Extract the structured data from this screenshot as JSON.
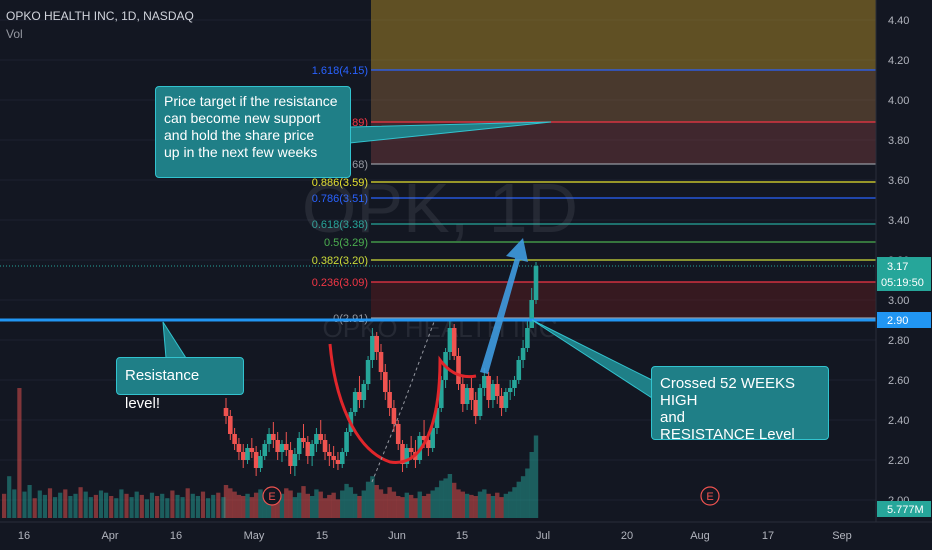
{
  "header": {
    "title": "OPKO HEALTH INC, 1D, NASDAQ",
    "volume_label": "Vol"
  },
  "watermark": {
    "symbol": "OPK, 1D",
    "name": "OPKO HEALTH INC"
  },
  "colors": {
    "background": "#131722",
    "up": "#26a69a",
    "down": "#ef5350",
    "resistance_line": "#2196f3",
    "annotation_fill": "#1f7f87",
    "annotation_border": "#32c3cf",
    "arrow": "#3f9be0",
    "curve": "#e0262b"
  },
  "annotations": {
    "price_target": [
      "Price target if the resistance",
      "can become new support",
      "and hold the share price",
      "up in the next few weeks"
    ],
    "resistance": [
      "Resistance level!"
    ],
    "crossed": [
      "Crossed 52 WEEKS HIGH",
      "and",
      "RESISTANCE Level"
    ]
  },
  "price_labels": {
    "last_price": "3.17",
    "countdown": "05:19:50",
    "resistance_price": "2.90",
    "volume": "5.777M"
  },
  "event_markers": [
    "E",
    "E"
  ],
  "chart_data": {
    "type": "candlestick",
    "y_axis": {
      "range": [
        1.98,
        4.5
      ],
      "ticks": [
        "4.40",
        "4.20",
        "4.00",
        "3.80",
        "3.60",
        "3.40",
        "3.20",
        "3.00",
        "2.80",
        "2.60",
        "2.40",
        "2.20",
        "2.00"
      ],
      "tick_values": [
        4.4,
        4.2,
        4.0,
        3.8,
        3.6,
        3.4,
        3.2,
        3.0,
        2.8,
        2.6,
        2.4,
        2.2,
        2.0
      ]
    },
    "x_axis": {
      "ticks": [
        "16",
        "Apr",
        "16",
        "May",
        "15",
        "Jun",
        "15",
        "Jul",
        "20",
        "Aug",
        "17",
        "Sep"
      ]
    },
    "fibonacci": [
      {
        "label": "0(2.91)",
        "price": 2.91,
        "color": "#9598a1"
      },
      {
        "label": "0.236(3.09)",
        "price": 3.09,
        "color": "#f23645"
      },
      {
        "label": "0.382(3.20)",
        "price": 3.2,
        "color": "#cddc39"
      },
      {
        "label": "0.5(3.29)",
        "price": 3.29,
        "color": "#4caf50"
      },
      {
        "label": "0.618(3.38)",
        "price": 3.38,
        "color": "#26a69a"
      },
      {
        "label": "0.786(3.51)",
        "price": 3.51,
        "color": "#2962ff"
      },
      {
        "label": "0.886(3.59)",
        "price": 3.59,
        "color": "#e6e22e"
      },
      {
        "label": "1(3.68)",
        "price": 3.68,
        "color": "#9598a1"
      },
      {
        "label": "1.28(3.89)",
        "price": 3.89,
        "color": "#f23645"
      },
      {
        "label": "1.618(4.15)",
        "price": 4.15,
        "color": "#2962ff"
      }
    ],
    "resistance_level": 2.9,
    "last_price": 3.17,
    "candles": [
      [
        2.46,
        2.51,
        2.38,
        2.42
      ],
      [
        2.42,
        2.45,
        2.3,
        2.33
      ],
      [
        2.33,
        2.36,
        2.25,
        2.28
      ],
      [
        2.28,
        2.31,
        2.2,
        2.24
      ],
      [
        2.24,
        2.28,
        2.16,
        2.2
      ],
      [
        2.2,
        2.28,
        2.18,
        2.26
      ],
      [
        2.26,
        2.31,
        2.21,
        2.24
      ],
      [
        2.24,
        2.27,
        2.12,
        2.16
      ],
      [
        2.16,
        2.25,
        2.14,
        2.22
      ],
      [
        2.22,
        2.3,
        2.2,
        2.28
      ],
      [
        2.28,
        2.36,
        2.24,
        2.33
      ],
      [
        2.33,
        2.39,
        2.26,
        2.3
      ],
      [
        2.3,
        2.34,
        2.2,
        2.24
      ],
      [
        2.24,
        2.3,
        2.19,
        2.28
      ],
      [
        2.28,
        2.34,
        2.22,
        2.25
      ],
      [
        2.25,
        2.29,
        2.13,
        2.17
      ],
      [
        2.17,
        2.26,
        2.12,
        2.23
      ],
      [
        2.23,
        2.34,
        2.2,
        2.31
      ],
      [
        2.31,
        2.38,
        2.26,
        2.29
      ],
      [
        2.29,
        2.32,
        2.18,
        2.22
      ],
      [
        2.22,
        2.3,
        2.17,
        2.28
      ],
      [
        2.28,
        2.36,
        2.24,
        2.33
      ],
      [
        2.33,
        2.4,
        2.28,
        2.3
      ],
      [
        2.3,
        2.33,
        2.2,
        2.24
      ],
      [
        2.24,
        2.28,
        2.17,
        2.22
      ],
      [
        2.22,
        2.27,
        2.16,
        2.2
      ],
      [
        2.2,
        2.24,
        2.15,
        2.18
      ],
      [
        2.18,
        2.26,
        2.16,
        2.24
      ],
      [
        2.24,
        2.36,
        2.22,
        2.34
      ],
      [
        2.34,
        2.46,
        2.32,
        2.44
      ],
      [
        2.44,
        2.56,
        2.42,
        2.54
      ],
      [
        2.54,
        2.62,
        2.46,
        2.5
      ],
      [
        2.5,
        2.6,
        2.46,
        2.58
      ],
      [
        2.58,
        2.72,
        2.55,
        2.7
      ],
      [
        2.7,
        2.86,
        2.66,
        2.82
      ],
      [
        2.82,
        2.84,
        2.7,
        2.74
      ],
      [
        2.74,
        2.78,
        2.6,
        2.64
      ],
      [
        2.64,
        2.68,
        2.5,
        2.54
      ],
      [
        2.54,
        2.6,
        2.42,
        2.46
      ],
      [
        2.46,
        2.5,
        2.34,
        2.38
      ],
      [
        2.38,
        2.4,
        2.25,
        2.28
      ],
      [
        2.28,
        2.3,
        2.14,
        2.18
      ],
      [
        2.18,
        2.28,
        2.16,
        2.26
      ],
      [
        2.26,
        2.32,
        2.2,
        2.24
      ],
      [
        2.24,
        2.3,
        2.16,
        2.2
      ],
      [
        2.2,
        2.34,
        2.18,
        2.32
      ],
      [
        2.32,
        2.4,
        2.26,
        2.3
      ],
      [
        2.3,
        2.34,
        2.22,
        2.26
      ],
      [
        2.26,
        2.38,
        2.24,
        2.36
      ],
      [
        2.36,
        2.48,
        2.33,
        2.46
      ],
      [
        2.46,
        2.62,
        2.44,
        2.6
      ],
      [
        2.6,
        2.76,
        2.56,
        2.74
      ],
      [
        2.74,
        2.9,
        2.7,
        2.86
      ],
      [
        2.86,
        2.88,
        2.7,
        2.72
      ],
      [
        2.72,
        2.76,
        2.55,
        2.58
      ],
      [
        2.58,
        2.62,
        2.44,
        2.48
      ],
      [
        2.48,
        2.58,
        2.45,
        2.56
      ],
      [
        2.56,
        2.62,
        2.45,
        2.5
      ],
      [
        2.5,
        2.54,
        2.38,
        2.42
      ],
      [
        2.42,
        2.58,
        2.4,
        2.56
      ],
      [
        2.56,
        2.66,
        2.52,
        2.62
      ],
      [
        2.62,
        2.64,
        2.46,
        2.5
      ],
      [
        2.5,
        2.6,
        2.46,
        2.58
      ],
      [
        2.58,
        2.62,
        2.48,
        2.52
      ],
      [
        2.52,
        2.56,
        2.42,
        2.46
      ],
      [
        2.46,
        2.56,
        2.44,
        2.54
      ],
      [
        2.54,
        2.6,
        2.5,
        2.56
      ],
      [
        2.56,
        2.62,
        2.52,
        2.6
      ],
      [
        2.6,
        2.72,
        2.58,
        2.7
      ],
      [
        2.7,
        2.8,
        2.66,
        2.76
      ],
      [
        2.76,
        2.9,
        2.74,
        2.86
      ],
      [
        2.86,
        3.06,
        2.86,
        3.0
      ],
      [
        3.0,
        3.19,
        2.98,
        3.17
      ]
    ],
    "volumes": [
      0.3,
      0.27,
      0.24,
      0.21,
      0.2,
      0.22,
      0.19,
      0.23,
      0.26,
      0.21,
      0.28,
      0.24,
      0.18,
      0.22,
      0.27,
      0.25,
      0.19,
      0.23,
      0.29,
      0.22,
      0.2,
      0.26,
      0.24,
      0.18,
      0.21,
      0.23,
      0.17,
      0.25,
      0.31,
      0.28,
      0.22,
      0.2,
      0.25,
      0.33,
      0.38,
      0.3,
      0.26,
      0.22,
      0.28,
      0.24,
      0.2,
      0.19,
      0.23,
      0.21,
      0.18,
      0.24,
      0.2,
      0.22,
      0.25,
      0.28,
      0.34,
      0.36,
      0.4,
      0.32,
      0.26,
      0.24,
      0.22,
      0.21,
      0.2,
      0.24,
      0.26,
      0.22,
      0.2,
      0.23,
      0.19,
      0.22,
      0.24,
      0.28,
      0.33,
      0.38,
      0.45,
      0.6,
      0.75
    ]
  }
}
